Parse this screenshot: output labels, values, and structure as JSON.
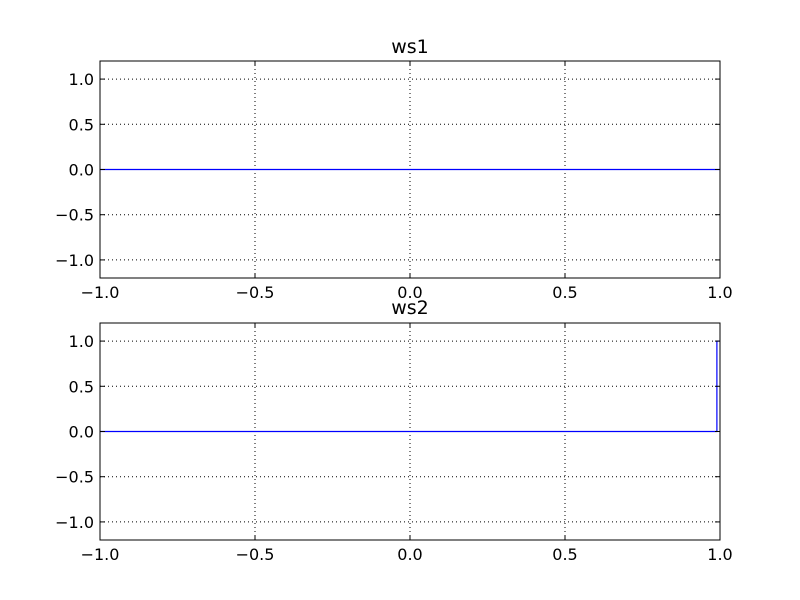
{
  "colors": {
    "line": "#0000ff",
    "grid": "#000000",
    "axes": "#000000",
    "background": "#ffffff"
  },
  "chart_data": [
    {
      "type": "line",
      "title": "ws1",
      "xlabel": "",
      "ylabel": "",
      "xlim": [
        -1.0,
        1.0
      ],
      "ylim": [
        -1.2,
        1.2
      ],
      "grid": true,
      "grid_style": "dotted",
      "legend": "none",
      "xticks": [
        -1.0,
        -0.5,
        0.0,
        0.5,
        1.0
      ],
      "xtick_labels": [
        "−1.0",
        "−0.5",
        "0.0",
        "0.5",
        "1.0"
      ],
      "yticks": [
        1.0,
        0.5,
        0.0,
        -0.5,
        -1.0
      ],
      "ytick_labels": [
        "1.0",
        "0.5",
        "0.0",
        "−0.5",
        "−1.0"
      ],
      "series": [
        {
          "x": [
            -1.0,
            1.0
          ],
          "y": [
            0.0,
            0.0
          ]
        }
      ]
    },
    {
      "type": "line",
      "title": "ws2",
      "xlabel": "",
      "ylabel": "",
      "xlim": [
        -1.0,
        1.0
      ],
      "ylim": [
        -1.2,
        1.2
      ],
      "grid": true,
      "grid_style": "dotted",
      "legend": "none",
      "xticks": [
        -1.0,
        -0.5,
        0.0,
        0.5,
        1.0
      ],
      "xtick_labels": [
        "−1.0",
        "−0.5",
        "0.0",
        "0.5",
        "1.0"
      ],
      "yticks": [
        1.0,
        0.5,
        0.0,
        -0.5,
        -1.0
      ],
      "ytick_labels": [
        "1.0",
        "0.5",
        "0.0",
        "−0.5",
        "−1.0"
      ],
      "series": [
        {
          "x": [
            -1.0,
            0.99,
            0.99,
            1.0
          ],
          "y": [
            0.0,
            0.0,
            1.0,
            1.0
          ]
        }
      ]
    }
  ]
}
